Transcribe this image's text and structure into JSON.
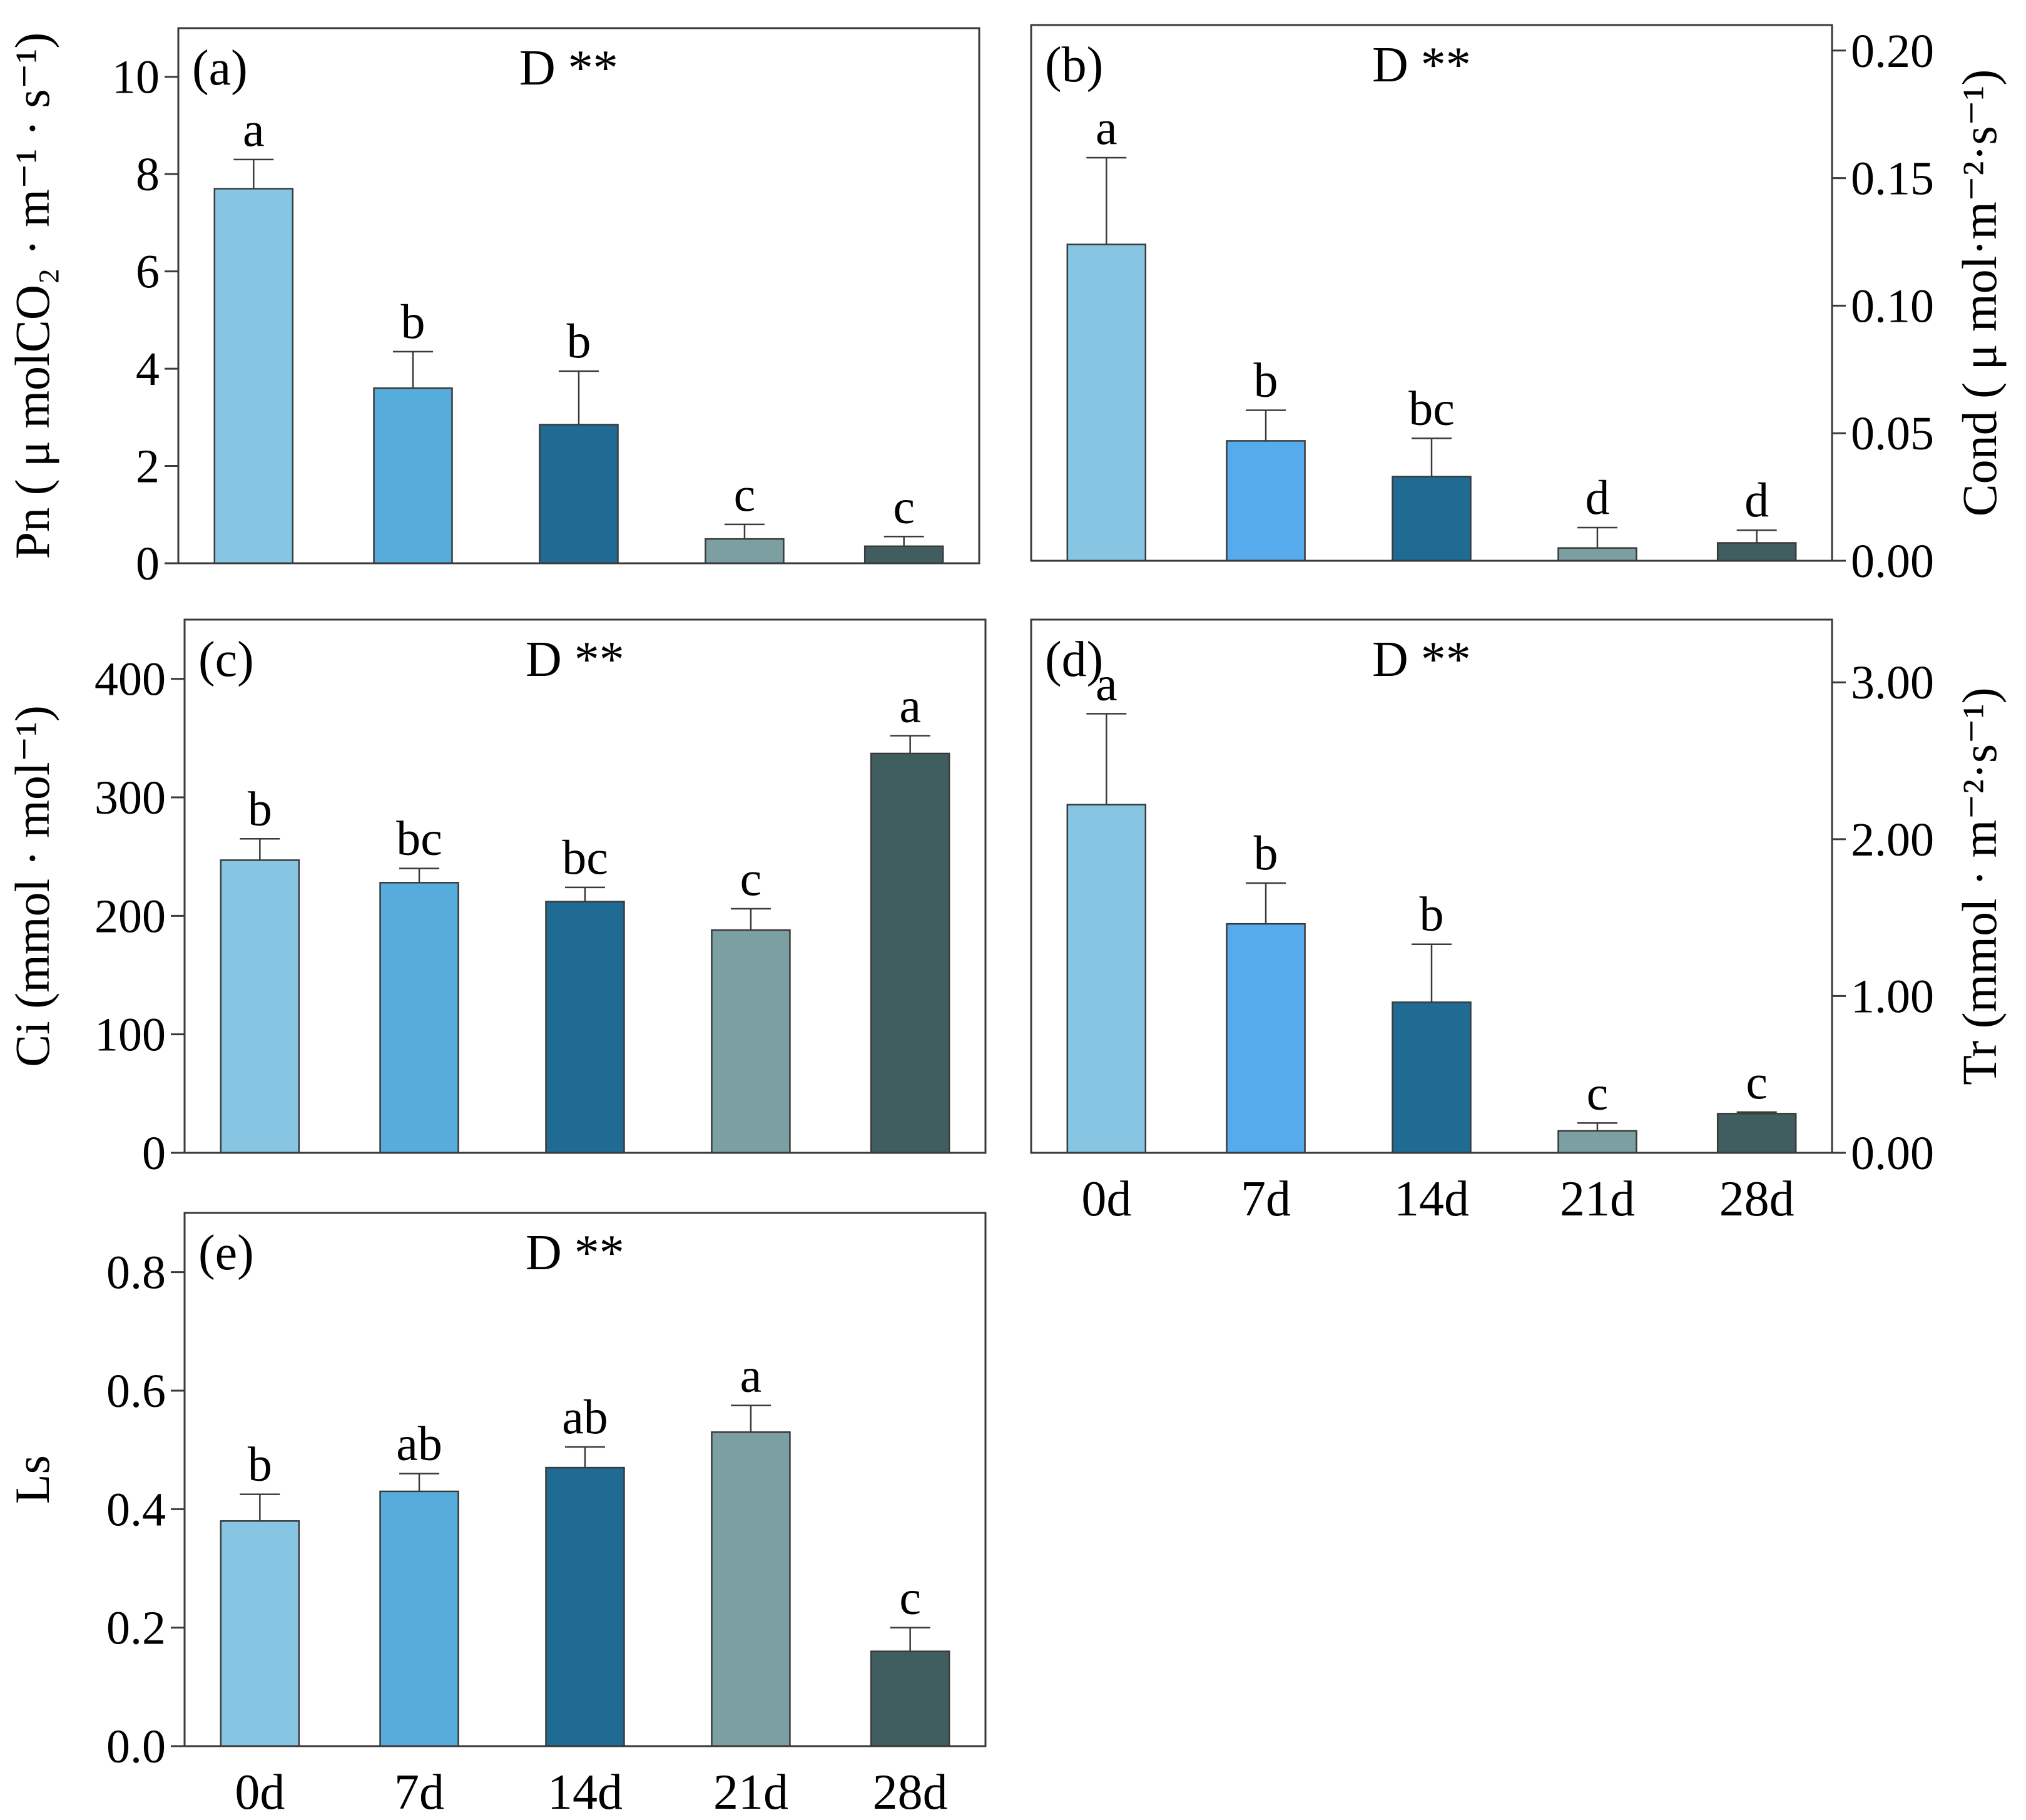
{
  "chart_data": [
    {
      "panel": "(a)",
      "type": "bar",
      "annotation": "D **",
      "categories": [
        "0d",
        "7d",
        "14d",
        "21d",
        "28d"
      ],
      "values": [
        7.7,
        3.6,
        2.85,
        0.5,
        0.35
      ],
      "errors": [
        0.6,
        0.75,
        1.1,
        0.3,
        0.2
      ],
      "letters": [
        "a",
        "b",
        "b",
        "c",
        "c"
      ],
      "ylabel": "Pn ( μ molCO₂ · m⁻¹ · s⁻¹)",
      "ylim": [
        0,
        11
      ],
      "yticks": [
        0,
        2,
        4,
        6,
        8,
        10
      ],
      "ytick_labels": [
        "0",
        "2",
        "4",
        "6",
        "8",
        "10"
      ],
      "axis_side": "left",
      "show_xlabels": false
    },
    {
      "panel": "(b)",
      "type": "bar",
      "annotation": "D **",
      "categories": [
        "0d",
        "7d",
        "14d",
        "21d",
        "28d"
      ],
      "values": [
        0.124,
        0.047,
        0.033,
        0.005,
        0.007
      ],
      "errors": [
        0.034,
        0.012,
        0.015,
        0.008,
        0.005
      ],
      "letters": [
        "a",
        "b",
        "bc",
        "d",
        "d"
      ],
      "ylabel": "Cond ( μ mol·m⁻²·s⁻¹)",
      "ylim": [
        0,
        0.21
      ],
      "yticks": [
        0,
        0.05,
        0.1,
        0.15,
        0.2
      ],
      "ytick_labels": [
        "0.00",
        "0.05",
        "0.10",
        "0.15",
        "0.20"
      ],
      "axis_side": "right",
      "show_xlabels": false
    },
    {
      "panel": "(c)",
      "type": "bar",
      "annotation": "D **",
      "categories": [
        "0d",
        "7d",
        "14d",
        "21d",
        "28d"
      ],
      "values": [
        247,
        228,
        212,
        188,
        337
      ],
      "errors": [
        18,
        12,
        12,
        18,
        15
      ],
      "letters": [
        "b",
        "bc",
        "bc",
        "c",
        "a"
      ],
      "ylabel": "Ci (mmol · mol⁻¹)",
      "ylim": [
        0,
        450
      ],
      "yticks": [
        0,
        100,
        200,
        300,
        400
      ],
      "ytick_labels": [
        "0",
        "100",
        "200",
        "300",
        "400"
      ],
      "axis_side": "left",
      "show_xlabels": false
    },
    {
      "panel": "(d)",
      "type": "bar",
      "annotation": "D **",
      "categories": [
        "0d",
        "7d",
        "14d",
        "21d",
        "28d"
      ],
      "values": [
        2.22,
        1.46,
        0.96,
        0.14,
        0.25
      ],
      "errors": [
        0.58,
        0.26,
        0.37,
        0.05,
        0.01
      ],
      "letters": [
        "a",
        "b",
        "b",
        "c",
        "c"
      ],
      "ylabel": "Tr (mmol · m⁻²·s⁻¹)",
      "ylim": [
        0,
        3.4
      ],
      "yticks": [
        0,
        1,
        2,
        3
      ],
      "ytick_labels": [
        "0.00",
        "1.00",
        "2.00",
        "3.00"
      ],
      "axis_side": "right",
      "show_xlabels": true
    },
    {
      "panel": "(e)",
      "type": "bar",
      "annotation": "D **",
      "categories": [
        "0d",
        "7d",
        "14d",
        "21d",
        "28d"
      ],
      "values": [
        0.38,
        0.43,
        0.47,
        0.53,
        0.16
      ],
      "errors": [
        0.045,
        0.03,
        0.035,
        0.045,
        0.04
      ],
      "letters": [
        "b",
        "ab",
        "ab",
        "a",
        "c"
      ],
      "ylabel": "Ls",
      "ylim": [
        0,
        0.9
      ],
      "yticks": [
        0,
        0.2,
        0.4,
        0.6,
        0.8
      ],
      "ytick_labels": [
        "0.0",
        "0.2",
        "0.4",
        "0.6",
        "0.8"
      ],
      "axis_side": "left",
      "show_xlabels": true
    }
  ],
  "colors": {
    "c0d": "#86c6e2",
    "c7d": "#56addb",
    "c7d_b": "#55abeb",
    "c14d": "#1f6b94",
    "c21d": "#7c9fa1",
    "c28d": "#405e60"
  }
}
